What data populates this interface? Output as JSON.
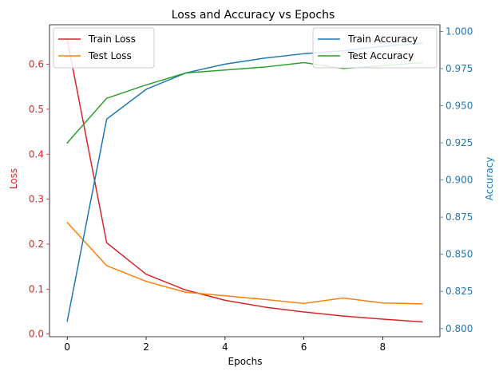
{
  "chart_data": {
    "type": "line",
    "title": "Loss and Accuracy vs Epochs",
    "xlabel": "Epochs",
    "ylabel_left": "Loss",
    "ylabel_right": "Accuracy",
    "x": [
      0,
      1,
      2,
      3,
      4,
      5,
      6,
      7,
      8,
      9
    ],
    "xlim": [
      -0.45,
      9.45
    ],
    "ylim_left": [
      -0.006,
      0.688
    ],
    "ylim_right": [
      0.7945,
      1.0045
    ],
    "x_ticks": [
      0,
      2,
      4,
      6,
      8
    ],
    "left_ticks": [
      0.0,
      0.1,
      0.2,
      0.3,
      0.4,
      0.5,
      0.6
    ],
    "left_tick_labels": [
      "0.0",
      "0.1",
      "0.2",
      "0.3",
      "0.4",
      "0.5",
      "0.6"
    ],
    "right_ticks": [
      0.8,
      0.825,
      0.85,
      0.875,
      0.9,
      0.925,
      0.95,
      0.975,
      1.0
    ],
    "right_tick_labels": [
      "0.800",
      "0.825",
      "0.850",
      "0.875",
      "0.900",
      "0.925",
      "0.950",
      "0.975",
      "1.000"
    ],
    "left_axis_color": "#d62728",
    "right_axis_color": "#1f77b4",
    "grid": false,
    "series_left": [
      {
        "name": "Train Loss",
        "color": "#d62728",
        "values": [
          0.655,
          0.203,
          0.133,
          0.098,
          0.075,
          0.06,
          0.049,
          0.04,
          0.033,
          0.027
        ]
      },
      {
        "name": "Test Loss",
        "color": "#ff7f0e",
        "values": [
          0.248,
          0.152,
          0.117,
          0.093,
          0.085,
          0.077,
          0.068,
          0.08,
          0.069,
          0.067
        ]
      }
    ],
    "series_right": [
      {
        "name": "Train Accuracy",
        "color": "#1f77b4",
        "values": [
          0.805,
          0.941,
          0.961,
          0.972,
          0.978,
          0.982,
          0.985,
          0.987,
          0.99,
          0.992
        ]
      },
      {
        "name": "Test Accuracy",
        "color": "#2ca02c",
        "values": [
          0.925,
          0.955,
          0.964,
          0.972,
          0.974,
          0.976,
          0.979,
          0.975,
          0.977,
          0.979
        ]
      }
    ],
    "legend_left_placement": "upper left",
    "legend_right_placement": "upper right"
  }
}
